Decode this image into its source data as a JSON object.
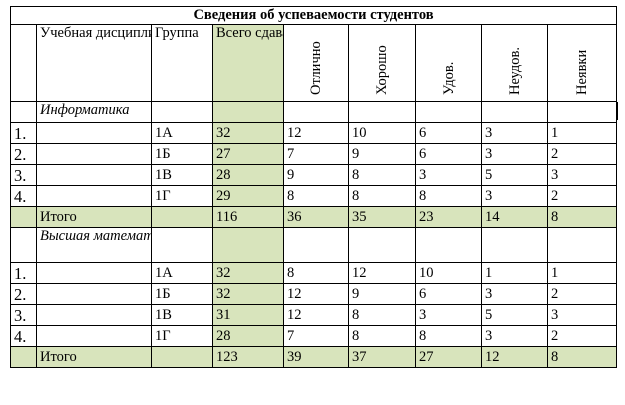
{
  "title": "Сведения об успеваемости студентов",
  "headers": {
    "discipline": "Учебная дисциплина",
    "group": "Группа",
    "total": "Всего сдавало",
    "excellent": "Отлично",
    "good": "Хорошо",
    "satisfactory": "Удов.",
    "unsatisfactory": "Неудов.",
    "absent": "Неявки"
  },
  "subjects": [
    {
      "name": "Информатика",
      "rows": [
        {
          "num": "1.",
          "group": "1А",
          "total": "32",
          "excellent": "12",
          "good": "10",
          "satisfactory": "6",
          "unsatisfactory": "3",
          "absent": "1"
        },
        {
          "num": "2.",
          "group": "1Б",
          "total": "27",
          "excellent": "7",
          "good": "9",
          "satisfactory": "6",
          "unsatisfactory": "3",
          "absent": "2"
        },
        {
          "num": "3.",
          "group": "1В",
          "total": "28",
          "excellent": "9",
          "good": "8",
          "satisfactory": "3",
          "unsatisfactory": "5",
          "absent": "3"
        },
        {
          "num": "4.",
          "group": "1Г",
          "total": "29",
          "excellent": "8",
          "good": "8",
          "satisfactory": "8",
          "unsatisfactory": "3",
          "absent": "2"
        }
      ],
      "summary": {
        "label": "Итого",
        "total": "116",
        "excellent": "36",
        "good": "35",
        "satisfactory": "23",
        "unsatisfactory": "14",
        "absent": "8"
      }
    },
    {
      "name": "Высшая математика",
      "rows": [
        {
          "num": "1.",
          "group": "1А",
          "total": "32",
          "excellent": "8",
          "good": "12",
          "satisfactory": "10",
          "unsatisfactory": "1",
          "absent": "1"
        },
        {
          "num": "2.",
          "group": "1Б",
          "total": "32",
          "excellent": "12",
          "good": "9",
          "satisfactory": "6",
          "unsatisfactory": "3",
          "absent": "2"
        },
        {
          "num": "3.",
          "group": "1В",
          "total": "31",
          "excellent": "12",
          "good": "8",
          "satisfactory": "3",
          "unsatisfactory": "5",
          "absent": "3"
        },
        {
          "num": "4.",
          "group": "1Г",
          "total": "28",
          "excellent": "7",
          "good": "8",
          "satisfactory": "8",
          "unsatisfactory": "3",
          "absent": "2"
        }
      ],
      "summary": {
        "label": "Итого",
        "total": "123",
        "excellent": "39",
        "good": "37",
        "satisfactory": "27",
        "unsatisfactory": "12",
        "absent": "8"
      }
    }
  ],
  "colors": {
    "highlight": "#d8e4bc",
    "border": "#000000"
  }
}
